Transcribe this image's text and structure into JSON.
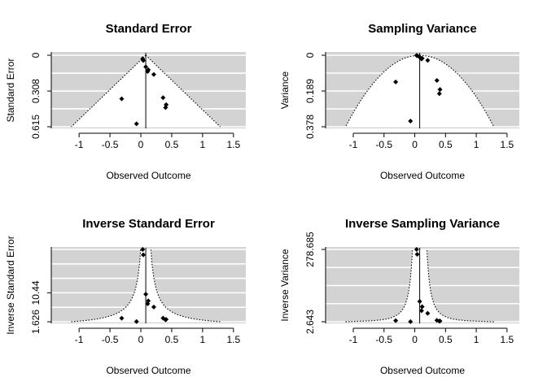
{
  "chart_data": [
    {
      "type": "scatter",
      "title": "Standard Error",
      "xlabel": "Observed Outcome",
      "ylabel": "Standard Error",
      "xlim": [
        -1.45,
        1.7
      ],
      "ylim": [
        0.615,
        0
      ],
      "x_ticks": [
        "-1",
        "-0.5",
        "0",
        "0.5",
        "1",
        "1.5"
      ],
      "x_tick_values": [
        -1,
        -0.5,
        0,
        0.5,
        1,
        1.5
      ],
      "y_ticks": [
        "0",
        "0.308",
        "0.615"
      ],
      "y_tick_values": [
        0,
        0.308,
        0.615
      ],
      "y_grid": [
        0,
        0.154,
        0.308,
        0.461,
        0.615
      ],
      "reference_line_x": 0.08,
      "funnel": {
        "center": 0.08,
        "shape": "linear"
      },
      "points": [
        {
          "x": 0.03,
          "y": 0.03
        },
        {
          "x": 0.04,
          "y": 0.045
        },
        {
          "x": 0.08,
          "y": 0.1
        },
        {
          "x": 0.12,
          "y": 0.125
        },
        {
          "x": 0.11,
          "y": 0.14
        },
        {
          "x": 0.21,
          "y": 0.165
        },
        {
          "x": -0.31,
          "y": 0.375
        },
        {
          "x": 0.36,
          "y": 0.365
        },
        {
          "x": 0.41,
          "y": 0.425
        },
        {
          "x": 0.4,
          "y": 0.45
        },
        {
          "x": -0.07,
          "y": 0.59
        }
      ]
    },
    {
      "type": "scatter",
      "title": "Sampling Variance",
      "xlabel": "Observed Outcome",
      "ylabel": "Variance",
      "xlim": [
        -1.45,
        1.7
      ],
      "ylim": [
        0.378,
        0
      ],
      "x_ticks": [
        "-1",
        "-0.5",
        "0",
        "0.5",
        "1",
        "1.5"
      ],
      "x_tick_values": [
        -1,
        -0.5,
        0,
        0.5,
        1,
        1.5
      ],
      "y_ticks": [
        "0",
        "0.189",
        "0.378"
      ],
      "y_tick_values": [
        0,
        0.189,
        0.378
      ],
      "y_grid": [
        0,
        0.0945,
        0.189,
        0.2835,
        0.378
      ],
      "reference_line_x": 0.08,
      "funnel": {
        "center": 0.08,
        "shape": "sqrt"
      },
      "points": [
        {
          "x": 0.03,
          "y": 0.001
        },
        {
          "x": 0.04,
          "y": 0.002
        },
        {
          "x": 0.08,
          "y": 0.01
        },
        {
          "x": 0.12,
          "y": 0.016
        },
        {
          "x": 0.11,
          "y": 0.02
        },
        {
          "x": 0.21,
          "y": 0.027
        },
        {
          "x": -0.31,
          "y": 0.141
        },
        {
          "x": 0.36,
          "y": 0.133
        },
        {
          "x": 0.41,
          "y": 0.181
        },
        {
          "x": 0.4,
          "y": 0.203
        },
        {
          "x": -0.07,
          "y": 0.348
        }
      ]
    },
    {
      "type": "scatter",
      "title": "Inverse Standard Error",
      "xlabel": "Observed Outcome",
      "ylabel": "Inverse Standard Error",
      "xlim": [
        -1.45,
        1.7
      ],
      "ylim": [
        1.26,
        24.0
      ],
      "x_ticks": [
        "-1",
        "-0.5",
        "0",
        "0.5",
        "1",
        "1.5"
      ],
      "x_tick_values": [
        -1,
        -0.5,
        0,
        0.5,
        1,
        1.5
      ],
      "y_ticks": [
        "1.626",
        "10.44"
      ],
      "y_tick_values": [
        1.626,
        10.44
      ],
      "y_grid": [
        1.626,
        6.03,
        10.44,
        14.85,
        19.25,
        23.65
      ],
      "reference_line_x": 0.08,
      "funnel": {
        "center": 0.08,
        "shape": "inverse"
      },
      "points": [
        {
          "x": 0.03,
          "y": 23.65
        },
        {
          "x": 0.04,
          "y": 22.0
        },
        {
          "x": 0.08,
          "y": 10.0
        },
        {
          "x": 0.12,
          "y": 8.0
        },
        {
          "x": 0.11,
          "y": 7.1
        },
        {
          "x": 0.21,
          "y": 6.1
        },
        {
          "x": -0.31,
          "y": 2.7
        },
        {
          "x": 0.36,
          "y": 2.75
        },
        {
          "x": 0.41,
          "y": 2.35
        },
        {
          "x": 0.4,
          "y": 2.2
        },
        {
          "x": -0.07,
          "y": 1.7
        }
      ]
    },
    {
      "type": "scatter",
      "title": "Inverse Sampling Variance",
      "xlabel": "Observed Outcome",
      "ylabel": "Inverse Variance",
      "xlim": [
        -1.45,
        1.7
      ],
      "ylim": [
        0,
        290
      ],
      "x_ticks": [
        "-1",
        "-0.5",
        "0",
        "0.5",
        "1",
        "1.5"
      ],
      "x_tick_values": [
        -1,
        -0.5,
        0,
        0.5,
        1,
        1.5
      ],
      "y_ticks": [
        "2.643",
        "278.685"
      ],
      "y_tick_values": [
        2.643,
        278.685
      ],
      "y_grid": [
        2.643,
        71.65,
        140.66,
        209.67,
        278.685
      ],
      "reference_line_x": 0.08,
      "funnel": {
        "center": 0.08,
        "shape": "inverse_sq"
      },
      "points": [
        {
          "x": 0.03,
          "y": 278.7
        },
        {
          "x": 0.04,
          "y": 260
        },
        {
          "x": 0.08,
          "y": 80
        },
        {
          "x": 0.12,
          "y": 60
        },
        {
          "x": 0.11,
          "y": 45
        },
        {
          "x": 0.21,
          "y": 35
        },
        {
          "x": -0.31,
          "y": 7
        },
        {
          "x": 0.36,
          "y": 8
        },
        {
          "x": 0.41,
          "y": 5.5
        },
        {
          "x": 0.4,
          "y": 4.8
        },
        {
          "x": -0.07,
          "y": 2.9
        }
      ]
    }
  ]
}
